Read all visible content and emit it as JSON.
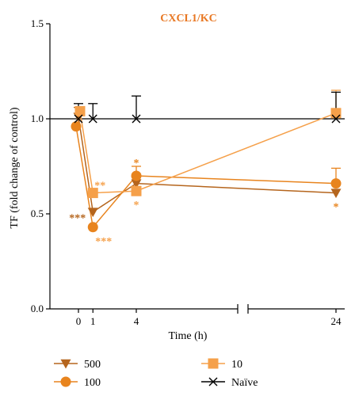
{
  "chart_data": {
    "type": "line",
    "title": "CXCL1/KC",
    "title_color": "#E87722",
    "xlabel": "Time (h)",
    "ylabel": "TF (fold change of control)",
    "ylim": [
      0,
      1.5
    ],
    "y_ticks": [
      "0.0",
      "0.5",
      "1.0",
      "1.5"
    ],
    "x_ticks": [
      {
        "value": 0,
        "label": "0"
      },
      {
        "value": 1,
        "label": "1"
      },
      {
        "value": 4,
        "label": "4"
      },
      {
        "value": 24,
        "label": "24"
      }
    ],
    "axis_break": true,
    "series": [
      {
        "name": "500",
        "color": "#B5651D",
        "marker": "triangle-down",
        "points": [
          {
            "x": 0,
            "y": 1.01,
            "err": 0.05
          },
          {
            "x": 1,
            "y": 0.51,
            "err": 0
          },
          {
            "x": 4,
            "y": 0.66,
            "err": 0
          },
          {
            "x": 24,
            "y": 0.61,
            "err": 0
          }
        ]
      },
      {
        "name": "100",
        "color": "#E8841E",
        "marker": "circle",
        "points": [
          {
            "x": 0,
            "y": 0.96,
            "err": 0
          },
          {
            "x": 1,
            "y": 0.43,
            "err": 0
          },
          {
            "x": 4,
            "y": 0.7,
            "err": 0.05
          },
          {
            "x": 24,
            "y": 0.66,
            "err": 0.08
          }
        ]
      },
      {
        "name": "10",
        "color": "#F5A04A",
        "marker": "square",
        "points": [
          {
            "x": 0,
            "y": 1.04,
            "err": 0
          },
          {
            "x": 1,
            "y": 0.61,
            "err": 0
          },
          {
            "x": 4,
            "y": 0.62,
            "err": 0
          },
          {
            "x": 24,
            "y": 1.03,
            "err": 0.12
          }
        ]
      },
      {
        "name": "Naïve",
        "color": "#000000",
        "marker": "x",
        "points": [
          {
            "x": 0,
            "y": 1.0,
            "err": 0.08
          },
          {
            "x": 1,
            "y": 1.0,
            "err": 0.08
          },
          {
            "x": 4,
            "y": 1.0,
            "err": 0.12
          },
          {
            "x": 24,
            "y": 1.0,
            "err": 0.14
          }
        ]
      }
    ],
    "reference_line": {
      "y": 1.0,
      "color": "#000000"
    },
    "annotations": [
      {
        "text": "***",
        "x": 1,
        "y": 0.51,
        "color": "#B5651D",
        "position": "left"
      },
      {
        "text": "***",
        "x": 1,
        "y": 0.43,
        "color": "#F5A04A",
        "position": "below-right"
      },
      {
        "text": "**",
        "x": 1,
        "y": 0.61,
        "color": "#F5A04A",
        "position": "above-right"
      },
      {
        "text": "*",
        "x": 4,
        "y": 0.7,
        "color": "#E8841E",
        "position": "above"
      },
      {
        "text": "*",
        "x": 4,
        "y": 0.62,
        "color": "#F5A04A",
        "position": "below"
      },
      {
        "text": "*",
        "x": 24,
        "y": 0.61,
        "color": "#E8841E",
        "position": "below"
      }
    ],
    "legend": {
      "placement": "bottom",
      "items": [
        {
          "label": "500",
          "series": 0
        },
        {
          "label": "100",
          "series": 1
        },
        {
          "label": "10",
          "series": 2
        },
        {
          "label": "Naïve",
          "series": 3
        }
      ]
    }
  }
}
